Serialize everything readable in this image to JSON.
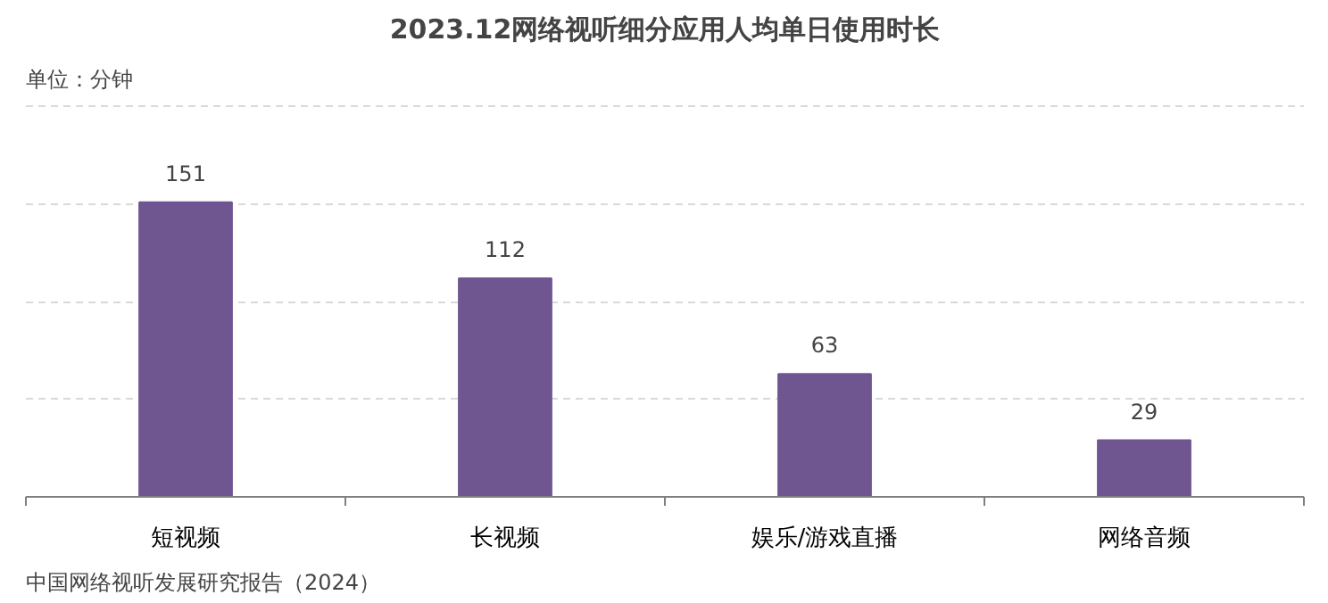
{
  "chart_data": {
    "type": "bar",
    "title": "2023.12网络视听细分应用人均单日使用时长",
    "ylabel": "单位：分钟",
    "categories": [
      "短视频",
      "长视频",
      "娱乐/游戏直播",
      "网络音频"
    ],
    "values": [
      151,
      112,
      63,
      29
    ],
    "color": "#6f5691",
    "data_labels": true,
    "ylim": [
      0,
      203
    ],
    "yticks": [
      {
        "value": 50,
        "label": null
      },
      {
        "value": 100,
        "label": null
      },
      {
        "value": 150,
        "label": null
      },
      {
        "value": 200,
        "label": null
      }
    ],
    "tick_labels": "x",
    "grid": "y",
    "annotations": [
      "中国网络视听发展研究报告（2024）"
    ]
  }
}
